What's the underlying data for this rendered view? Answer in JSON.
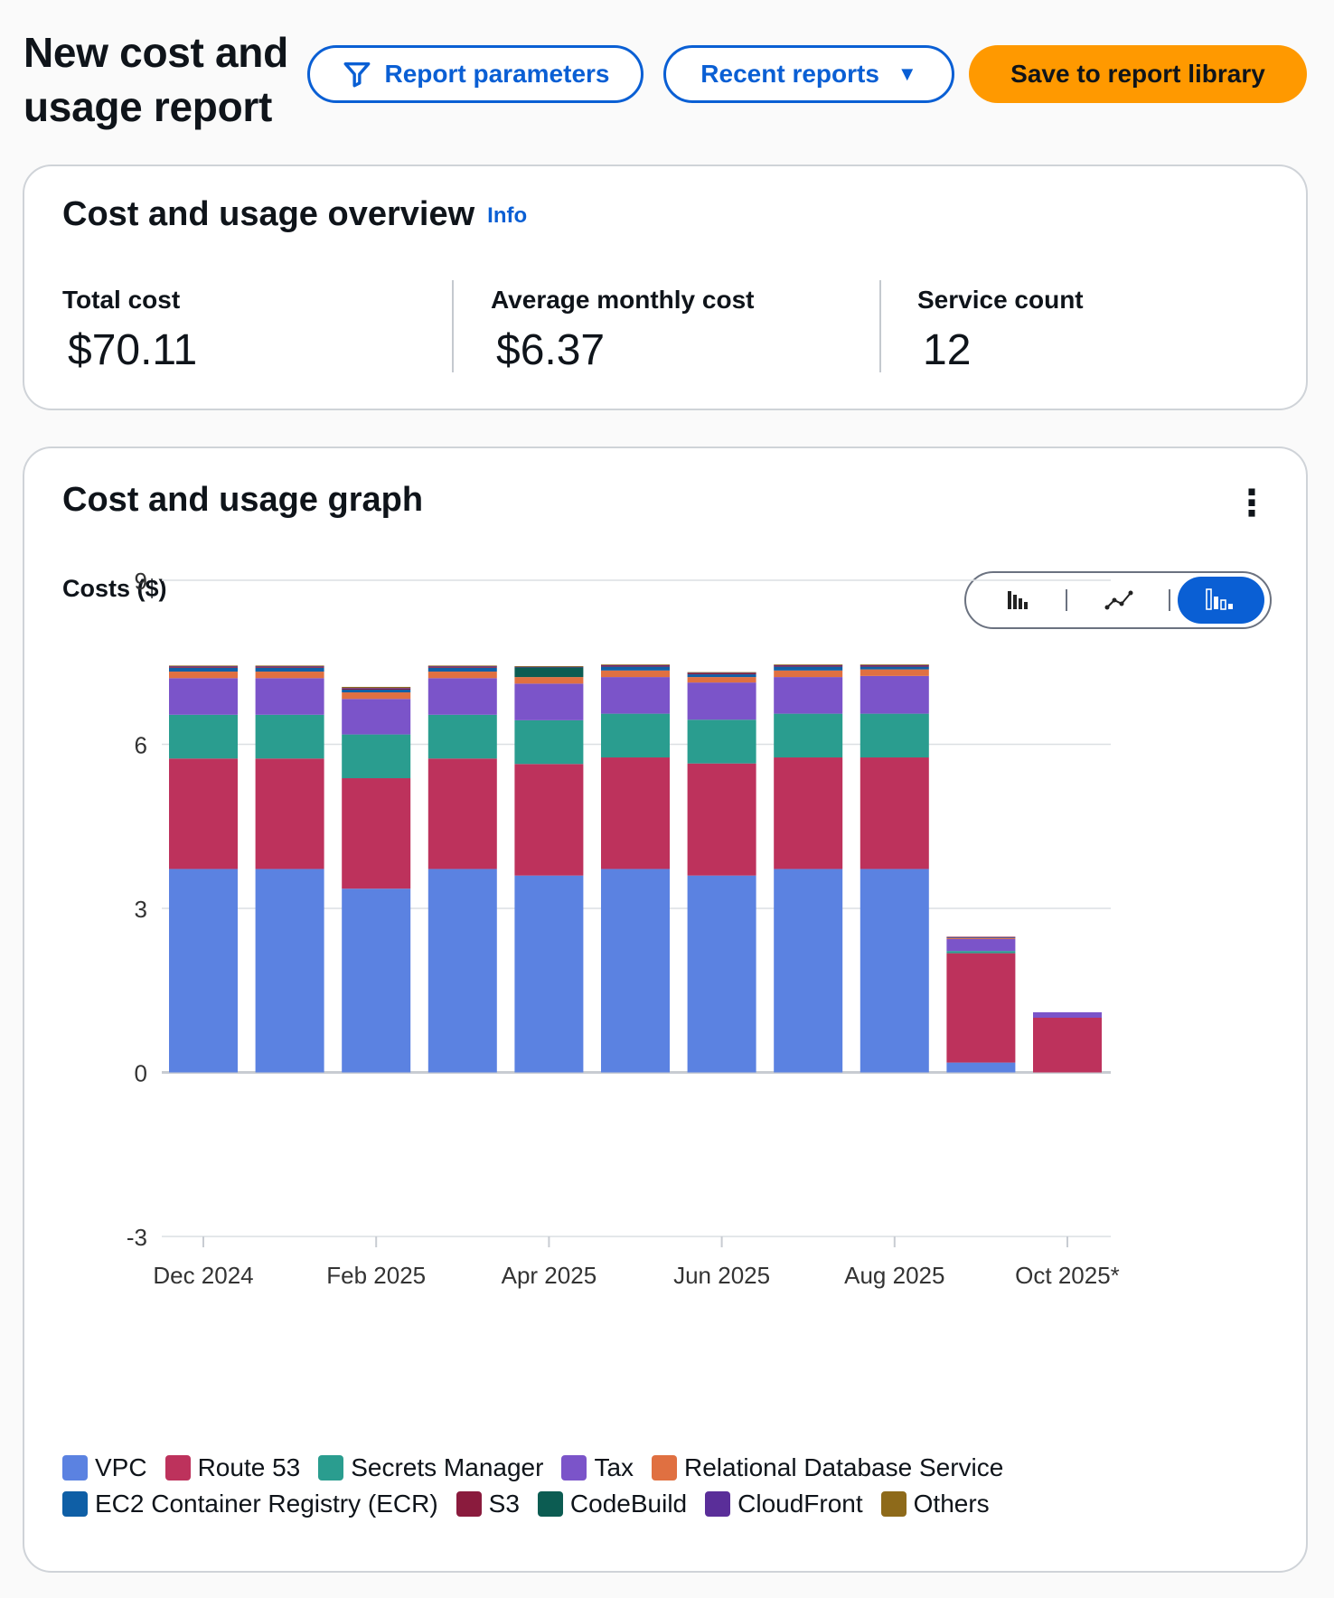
{
  "header": {
    "title": "New cost and usage report",
    "report_parameters_label": "Report parameters",
    "recent_reports_label": "Recent reports",
    "save_label": "Save to report library"
  },
  "overview": {
    "title": "Cost and usage overview",
    "info_label": "Info",
    "metrics": [
      {
        "label": "Total cost",
        "value": "$70.11"
      },
      {
        "label": "Average monthly cost",
        "value": "$6.37"
      },
      {
        "label": "Service count",
        "value": "12"
      }
    ]
  },
  "graph": {
    "title": "Cost and usage graph",
    "menu_icon": "kebab-menu-icon",
    "chart_type_toggle": [
      "bar-chart-icon",
      "line-chart-icon",
      "stacked-bar-chart-icon"
    ],
    "active_chart_type": "stacked-bar-chart-icon"
  },
  "chart_data": {
    "type": "bar",
    "stacked": true,
    "title": "Cost and usage graph",
    "ylabel": "Costs ($)",
    "xlabel": "",
    "ylim": [
      -3,
      9
    ],
    "yticks": [
      9,
      6,
      3,
      0,
      -3
    ],
    "grid": true,
    "categories": [
      "Dec 2024",
      "Jan 2025",
      "Feb 2025",
      "Mar 2025",
      "Apr 2025",
      "May 2025",
      "Jun 2025",
      "Jul 2025",
      "Aug 2025",
      "Sep 2025",
      "Oct 2025*"
    ],
    "xtick_labels": [
      "Dec 2024",
      "",
      "Feb 2025",
      "",
      "Apr 2025",
      "",
      "Jun 2025",
      "",
      "Aug 2025",
      "",
      "Oct 2025*"
    ],
    "series": [
      {
        "name": "VPC",
        "color": "#5b82e1",
        "values": [
          3.72,
          3.72,
          3.36,
          3.72,
          3.6,
          3.72,
          3.6,
          3.72,
          3.72,
          0.18,
          0
        ]
      },
      {
        "name": "Route 53",
        "color": "#bd325c",
        "values": [
          2.02,
          2.02,
          2.02,
          2.02,
          2.04,
          2.04,
          2.05,
          2.04,
          2.04,
          2.0,
          1.0
        ]
      },
      {
        "name": "Secrets Manager",
        "color": "#2a9d8f",
        "values": [
          0.8,
          0.8,
          0.8,
          0.8,
          0.8,
          0.8,
          0.8,
          0.8,
          0.8,
          0.04,
          0
        ]
      },
      {
        "name": "Tax",
        "color": "#7b54c9",
        "values": [
          0.67,
          0.67,
          0.65,
          0.67,
          0.67,
          0.67,
          0.68,
          0.67,
          0.69,
          0.22,
          0.1
        ]
      },
      {
        "name": "Relational Database Service",
        "color": "#e07041",
        "values": [
          0.12,
          0.12,
          0.12,
          0.12,
          0.12,
          0.12,
          0.1,
          0.12,
          0.12,
          0.02,
          0
        ]
      },
      {
        "name": "EC2 Container Registry (ECR)",
        "color": "#0f5fa6",
        "values": [
          0.07,
          0.07,
          0.05,
          0.07,
          0.0,
          0.07,
          0.05,
          0.07,
          0.05,
          0.01,
          0
        ]
      },
      {
        "name": "S3",
        "color": "#8a1b3d",
        "values": [
          0.02,
          0.02,
          0.02,
          0.02,
          0.0,
          0.02,
          0.02,
          0.02,
          0.02,
          0.01,
          0
        ]
      },
      {
        "name": "CodeBuild",
        "color": "#0c5c52",
        "values": [
          0.0,
          0.0,
          0.0,
          0.0,
          0.18,
          0.0,
          0.0,
          0.0,
          0.0,
          0.0,
          0
        ]
      },
      {
        "name": "CloudFront",
        "color": "#5a2e99",
        "values": [
          0.01,
          0.01,
          0.01,
          0.01,
          0.01,
          0.01,
          0.01,
          0.01,
          0.01,
          0.0,
          0
        ]
      },
      {
        "name": "Others",
        "color": "#8e6a1a",
        "values": [
          0.01,
          0.01,
          0.02,
          0.01,
          0.01,
          0.01,
          0.01,
          0.01,
          0.01,
          0.0,
          0
        ]
      }
    ]
  }
}
